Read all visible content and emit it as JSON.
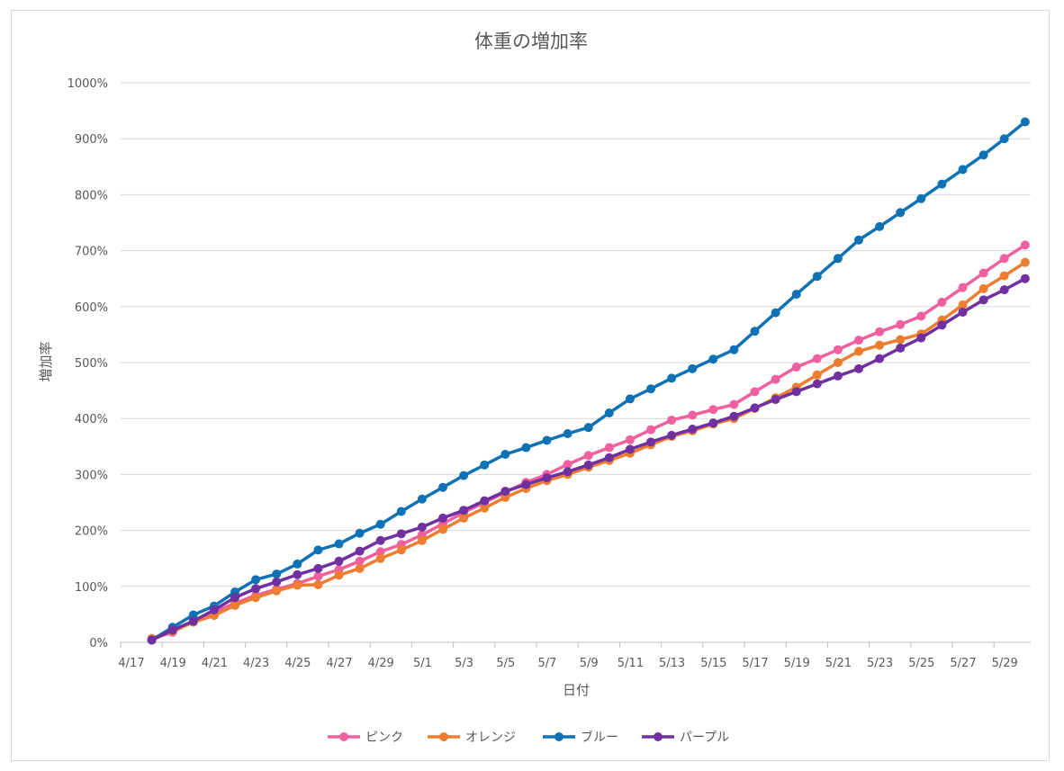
{
  "chart_data": {
    "type": "line",
    "title": "体重の増加率",
    "xlabel": "日付",
    "ylabel": "増加率",
    "y_unit": "%",
    "ylim": [
      0,
      1000
    ],
    "y_ticks": [
      0,
      100,
      200,
      300,
      400,
      500,
      600,
      700,
      800,
      900,
      1000
    ],
    "x_ticks": [
      "4/17",
      "4/19",
      "4/21",
      "4/23",
      "4/25",
      "4/27",
      "4/29",
      "5/1",
      "5/3",
      "5/5",
      "5/7",
      "5/9",
      "5/11",
      "5/13",
      "5/15",
      "5/17",
      "5/19",
      "5/21",
      "5/23",
      "5/25",
      "5/27",
      "5/29"
    ],
    "grid": true,
    "legend_position": "bottom",
    "categories": [
      "4/18",
      "4/19",
      "4/20",
      "4/21",
      "4/22",
      "4/23",
      "4/24",
      "4/25",
      "4/26",
      "4/27",
      "4/28",
      "4/29",
      "4/30",
      "5/1",
      "5/2",
      "5/3",
      "5/4",
      "5/5",
      "5/6",
      "5/7",
      "5/8",
      "5/9",
      "5/10",
      "5/11",
      "5/12",
      "5/13",
      "5/14",
      "5/15",
      "5/16",
      "5/17",
      "5/18",
      "5/19",
      "5/20",
      "5/21",
      "5/22",
      "5/23",
      "5/24",
      "5/25",
      "5/26",
      "5/27",
      "5/28",
      "5/29",
      "5/30"
    ],
    "series": [
      {
        "name": "ピンク",
        "color": "#f0609e",
        "values": [
          6,
          18,
          38,
          54,
          70,
          84,
          95,
          105,
          118,
          130,
          145,
          162,
          175,
          192,
          212,
          232,
          250,
          268,
          286,
          300,
          318,
          334,
          348,
          362,
          380,
          397,
          406,
          416,
          425,
          448,
          470,
          492,
          507,
          523,
          540,
          555,
          568,
          583,
          608,
          634,
          660,
          686,
          710
        ]
      },
      {
        "name": "オレンジ",
        "color": "#ed7d31",
        "values": [
          7,
          20,
          36,
          48,
          66,
          80,
          92,
          102,
          103,
          120,
          132,
          150,
          165,
          182,
          202,
          222,
          240,
          259,
          275,
          289,
          300,
          313,
          325,
          338,
          353,
          368,
          378,
          390,
          400,
          418,
          437,
          456,
          478,
          500,
          520,
          531,
          541,
          551,
          576,
          603,
          632,
          655,
          679
        ]
      },
      {
        "name": "ブルー",
        "color": "#0e72b5",
        "values": [
          4,
          27,
          49,
          65,
          90,
          112,
          122,
          140,
          165,
          176,
          195,
          211,
          234,
          256,
          277,
          298,
          317,
          336,
          348,
          361,
          373,
          384,
          410,
          435,
          453,
          472,
          489,
          506,
          523,
          556,
          589,
          622,
          654,
          686,
          719,
          743,
          768,
          793,
          819,
          845,
          871,
          900,
          930
        ]
      },
      {
        "name": "パープル",
        "color": "#7030a0",
        "values": [
          4,
          22,
          38,
          58,
          80,
          96,
          108,
          121,
          132,
          145,
          163,
          182,
          194,
          206,
          222,
          236,
          253,
          270,
          282,
          294,
          305,
          317,
          330,
          345,
          358,
          370,
          381,
          392,
          404,
          419,
          434,
          448,
          462,
          476,
          489,
          507,
          526,
          544,
          567,
          590,
          612,
          630,
          650
        ]
      }
    ]
  }
}
